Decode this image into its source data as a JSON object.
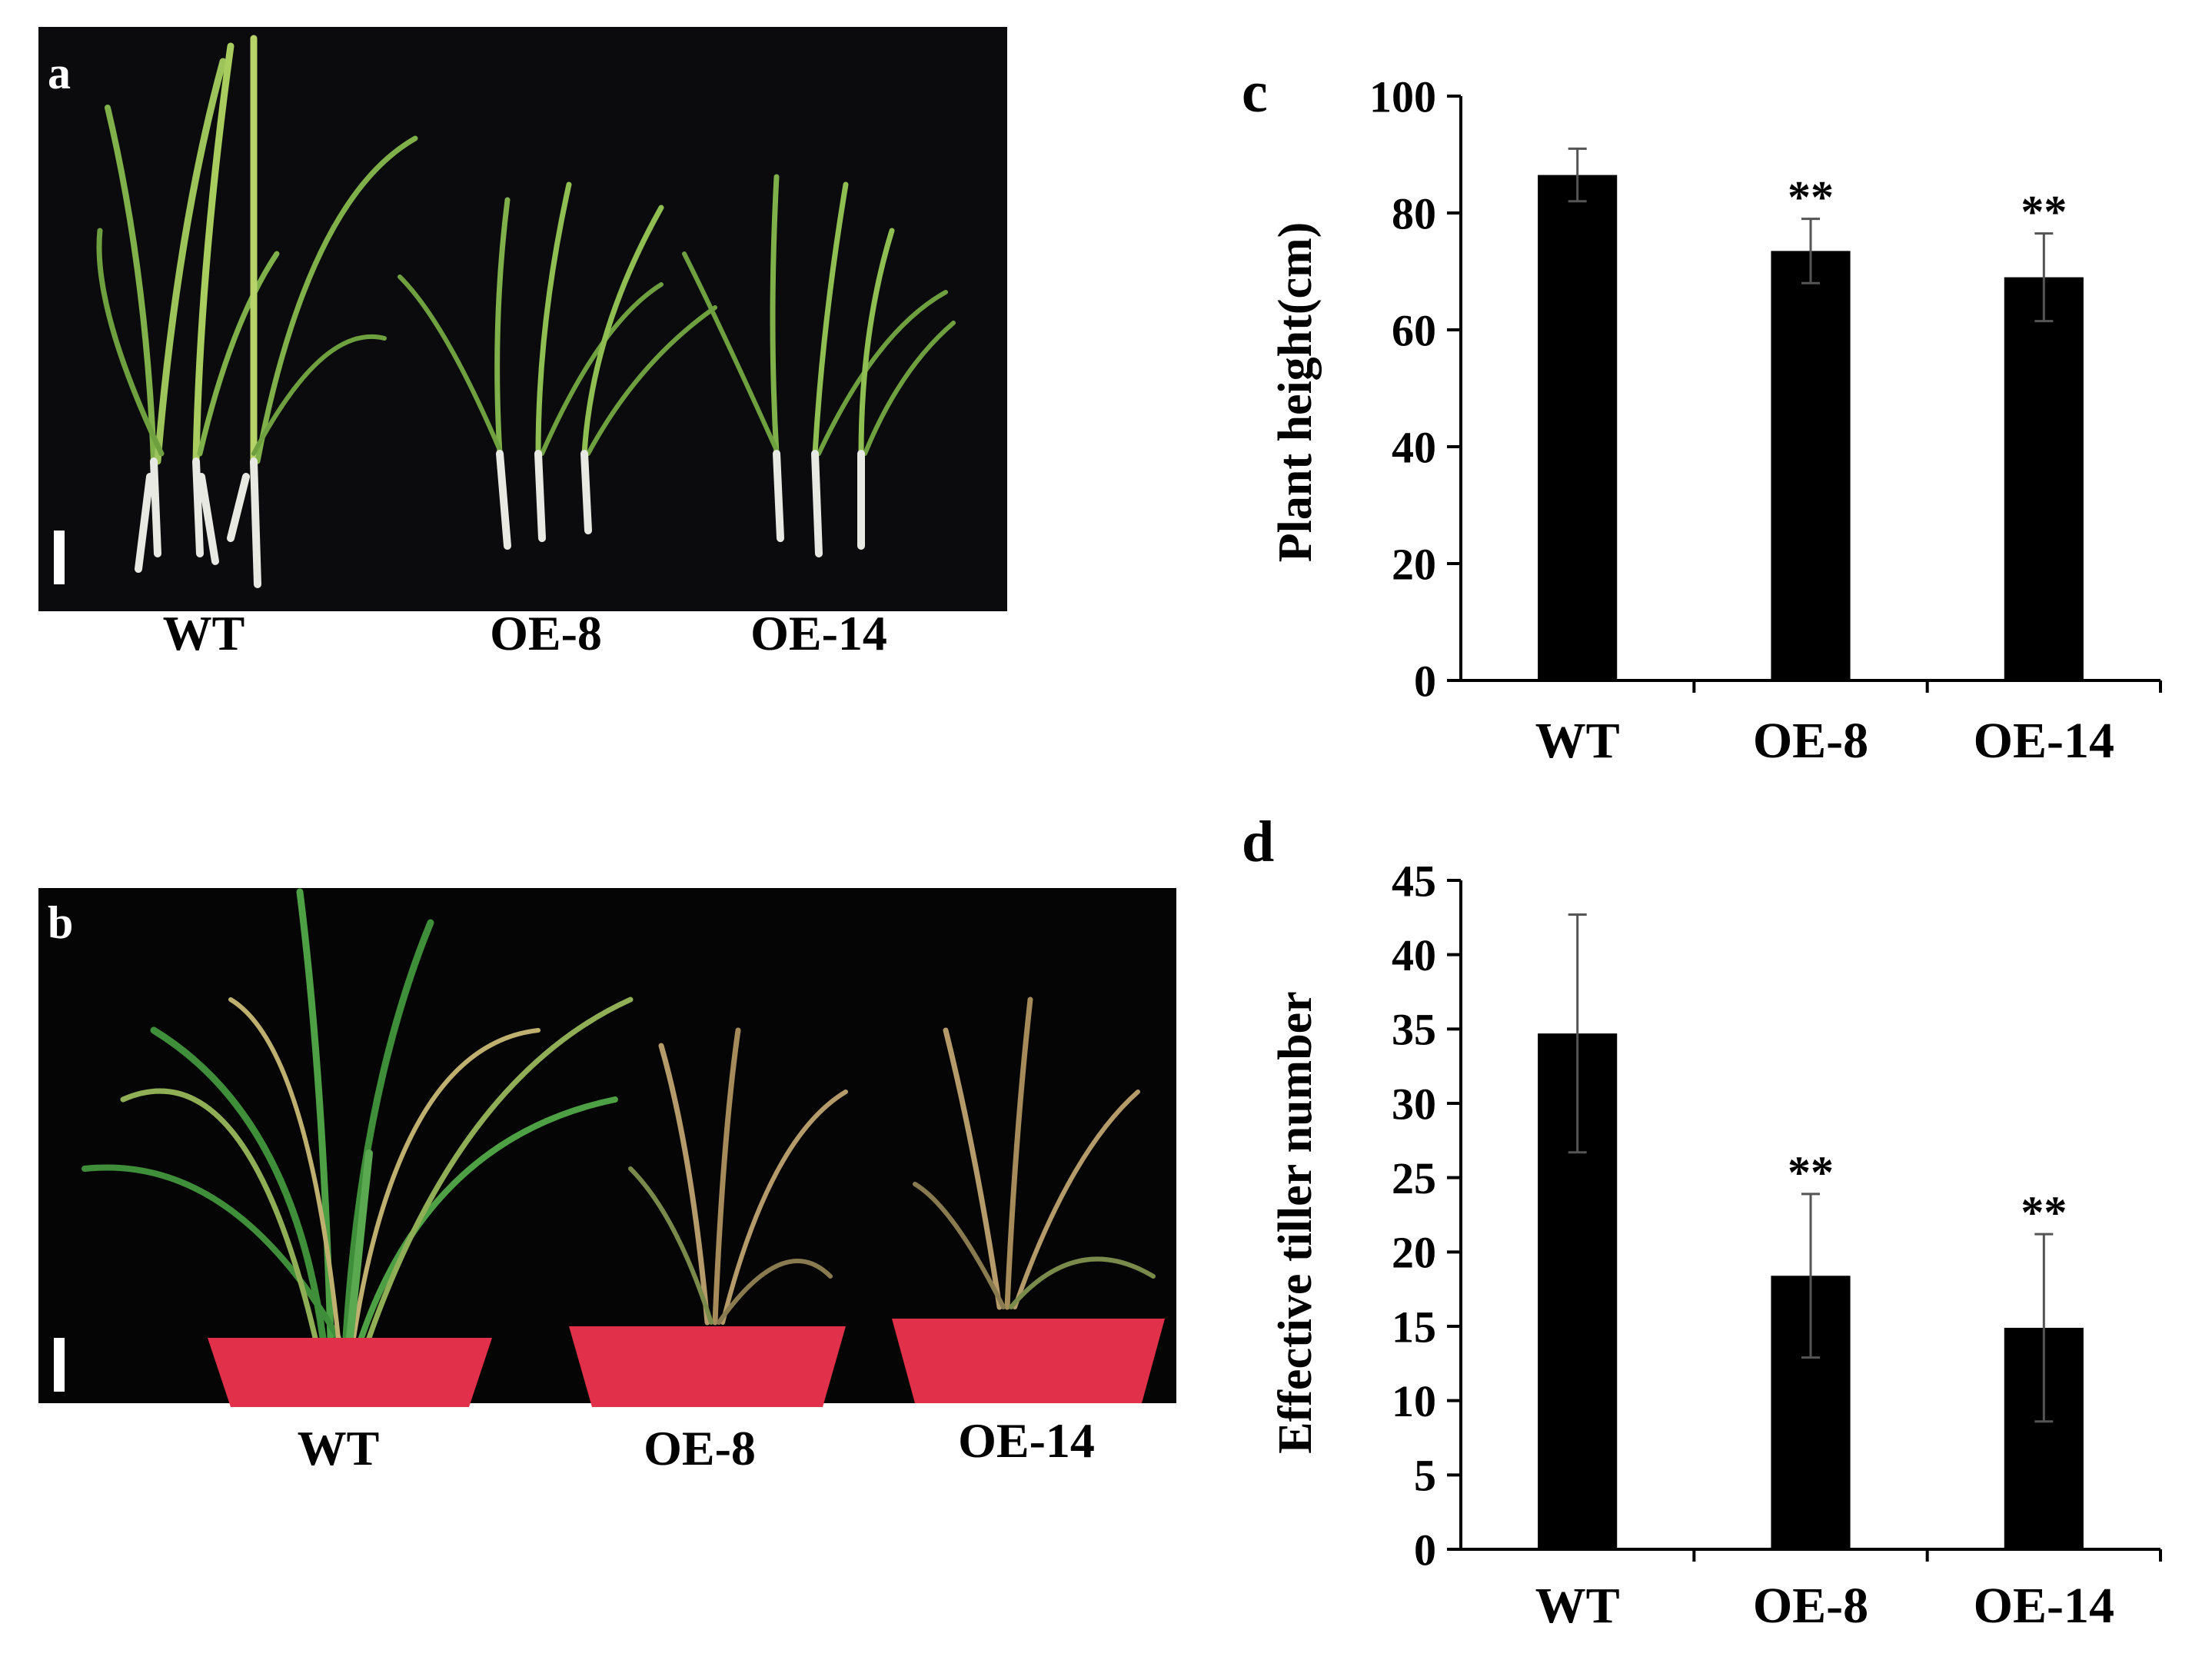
{
  "panels": {
    "a": {
      "letter": "a",
      "labels": [
        "WT",
        "OE-8",
        "OE-14"
      ],
      "colors": {
        "background": "#0b0b0d",
        "leaf": "#7fb04a",
        "leaf_light": "#b8d36a",
        "root": "#e9e9e4"
      }
    },
    "b": {
      "letter": "b",
      "labels": [
        "WT",
        "OE-8",
        "OE-14"
      ],
      "colors": {
        "background": "#050505",
        "green": "#3f8f3a",
        "straw": "#b59a6a",
        "pot": "#e0304a"
      }
    }
  },
  "chart_data": [
    {
      "panel": "c",
      "letter": "c",
      "type": "bar",
      "categories": [
        "WT",
        "OE-8",
        "OE-14"
      ],
      "values": [
        86.5,
        73.5,
        69
      ],
      "errors": [
        4.5,
        5.5,
        7.5
      ],
      "significance": [
        "",
        "**",
        "**"
      ],
      "ylabel": "Plant height(cm)",
      "ylim": [
        0,
        100
      ],
      "yticks": [
        0,
        20,
        40,
        60,
        80,
        100
      ],
      "grid": false,
      "bar_color": "#000000"
    },
    {
      "panel": "d",
      "letter": "d",
      "type": "bar",
      "categories": [
        "WT",
        "OE-8",
        "OE-14"
      ],
      "values": [
        34.7,
        18.4,
        14.9
      ],
      "errors": [
        8,
        5.5,
        6.3
      ],
      "significance": [
        "",
        "**",
        "**"
      ],
      "ylabel": "Effective tiller number",
      "ylim": [
        0,
        45
      ],
      "yticks": [
        0,
        5,
        10,
        15,
        20,
        25,
        30,
        35,
        40,
        45
      ],
      "grid": false,
      "bar_color": "#000000"
    }
  ]
}
